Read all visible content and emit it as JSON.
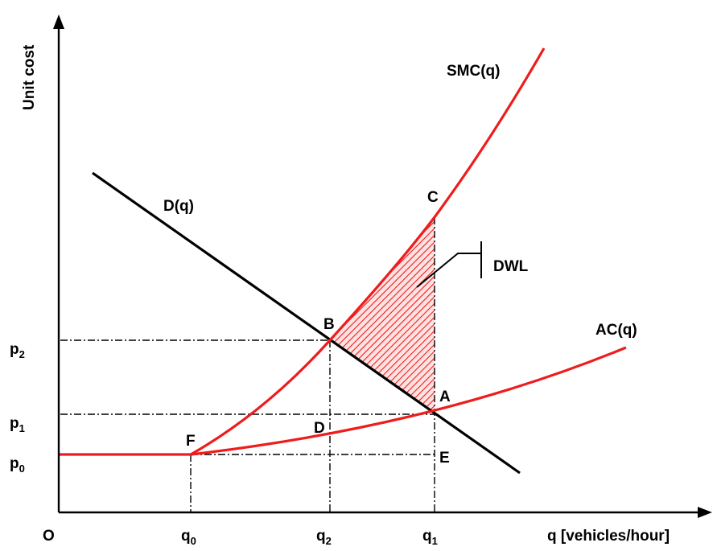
{
  "axes": {
    "y_label": "Unit cost",
    "origin_label": "O",
    "x_label": "q [vehicles/hour]"
  },
  "ticks": {
    "x": [
      {
        "base": "q",
        "sub": "0"
      },
      {
        "base": "q",
        "sub": "2"
      },
      {
        "base": "q",
        "sub": "1"
      }
    ],
    "y": [
      {
        "base": "p",
        "sub": "2"
      },
      {
        "base": "p",
        "sub": "1"
      },
      {
        "base": "p",
        "sub": "0"
      }
    ]
  },
  "curves": {
    "demand": "D(q)",
    "smc": "SMC(q)",
    "ac": "AC(q)"
  },
  "points": {
    "A": "A",
    "B": "B",
    "C": "C",
    "D": "D",
    "E": "E",
    "F": "F"
  },
  "region_label": "DWL",
  "colors": {
    "cost_curves": "#ee1c1c",
    "demand": "#000000",
    "hatch": "#ee1c1c"
  }
}
